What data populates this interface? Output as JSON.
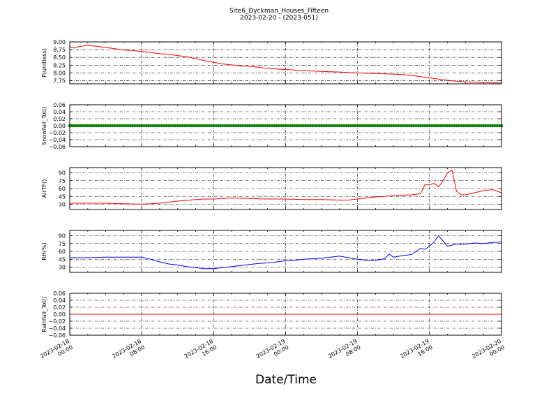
{
  "figure": {
    "title": "Site6_Dyckman_Houses_Fifteen",
    "subtitle": "2023-02-20 - (2023-051)",
    "xlabel": "Date/Time"
  },
  "chart_data": [
    {
      "type": "line",
      "ylabel": "P(unitless)",
      "ylim": [
        7.65,
        9.0
      ],
      "yticks": [
        "7.75",
        "8.00",
        "8.25",
        "8.50",
        "8.75",
        "9.00"
      ],
      "ytick_values": [
        7.75,
        8.0,
        8.25,
        8.5,
        8.75,
        9.0
      ],
      "xlim": [
        "2023-02-18 00:00",
        "2023-02-20 00:00"
      ],
      "grid": true,
      "series": [
        {
          "color": "#ff0000",
          "x_hours": [
            0,
            0.5,
            1,
            2,
            3,
            4,
            5,
            6,
            7,
            8,
            9,
            10,
            11,
            12,
            13,
            14,
            15,
            16,
            17,
            18,
            19,
            20,
            21,
            22,
            23,
            24,
            25,
            26,
            27,
            28,
            29,
            30,
            31,
            32,
            33,
            34,
            35,
            36,
            37,
            38,
            39,
            40,
            41,
            42,
            43,
            44,
            45,
            46,
            47,
            48
          ],
          "values": [
            8.84,
            8.8,
            8.85,
            8.89,
            8.86,
            8.82,
            8.78,
            8.74,
            8.72,
            8.69,
            8.66,
            8.62,
            8.6,
            8.56,
            8.52,
            8.46,
            8.4,
            8.34,
            8.29,
            8.26,
            8.23,
            8.21,
            8.18,
            8.15,
            8.13,
            8.11,
            8.09,
            8.08,
            8.06,
            8.05,
            8.04,
            8.03,
            8.01,
            8.0,
            7.99,
            7.98,
            7.97,
            7.96,
            7.95,
            7.92,
            7.88,
            7.84,
            7.8,
            7.76,
            7.73,
            7.71,
            7.7,
            7.69,
            7.68,
            7.68
          ]
        }
      ]
    },
    {
      "type": "line",
      "ylabel": "Snowfall_Tot()",
      "ylim": [
        -0.06,
        0.06
      ],
      "yticks": [
        "−0.06",
        "−0.04",
        "−0.02",
        "0.00",
        "0.02",
        "0.04",
        "0.06"
      ],
      "ytick_values": [
        -0.06,
        -0.04,
        -0.02,
        0.0,
        0.02,
        0.04,
        0.06
      ],
      "xlim": [
        "2023-02-18 00:00",
        "2023-02-20 00:00"
      ],
      "grid": true,
      "series": [
        {
          "color": "#008000",
          "x_hours": [
            0,
            48
          ],
          "values": [
            0,
            0
          ],
          "markers": true
        }
      ]
    },
    {
      "type": "line",
      "ylabel": "AirTF()",
      "ylim": [
        20,
        100
      ],
      "yticks": [
        "30",
        "45",
        "60",
        "75",
        "90"
      ],
      "ytick_values": [
        30,
        45,
        60,
        75,
        90
      ],
      "xlim": [
        "2023-02-18 00:00",
        "2023-02-20 00:00"
      ],
      "grid": true,
      "series": [
        {
          "color": "#ff0000",
          "x_hours": [
            0,
            2,
            4,
            6,
            8,
            10,
            12,
            14,
            15,
            16,
            18,
            20,
            22,
            24,
            26,
            28,
            30,
            31,
            32,
            34,
            35,
            36,
            38,
            39,
            39.5,
            40,
            40.5,
            41,
            41.5,
            42,
            42.5,
            43,
            43.5,
            44,
            45,
            46,
            47,
            48
          ],
          "values": [
            32,
            32,
            32,
            31,
            30,
            32,
            36,
            39,
            40,
            40,
            42,
            41,
            40,
            40,
            39,
            39,
            38,
            38,
            40,
            44,
            45,
            47,
            48,
            50,
            68,
            67,
            70,
            63,
            75,
            90,
            95,
            55,
            48,
            48,
            52,
            56,
            58,
            52
          ]
        }
      ]
    },
    {
      "type": "line",
      "ylabel": "RH(%)",
      "ylim": [
        20,
        100
      ],
      "yticks": [
        "30",
        "45",
        "60",
        "75",
        "90"
      ],
      "ytick_values": [
        30,
        45,
        60,
        75,
        90
      ],
      "xlim": [
        "2023-02-18 00:00",
        "2023-02-20 00:00"
      ],
      "grid": true,
      "series": [
        {
          "color": "#0000ff",
          "x_hours": [
            0,
            2,
            4,
            6,
            8,
            9,
            10,
            11,
            12,
            13,
            14,
            15,
            16,
            17,
            18,
            19,
            20,
            21,
            22,
            23,
            24,
            25,
            26,
            27,
            28,
            29,
            30,
            31,
            32,
            33,
            34,
            35,
            35.5,
            36,
            37,
            38,
            38.5,
            39,
            39.5,
            40,
            40.5,
            41,
            41.5,
            42,
            42.5,
            43,
            44,
            45,
            46,
            47,
            48
          ],
          "values": [
            48,
            48,
            49,
            49,
            49,
            45,
            40,
            36,
            34,
            31,
            29,
            27,
            27,
            29,
            31,
            33,
            35,
            37,
            38,
            40,
            42,
            43,
            45,
            46,
            47,
            49,
            51,
            48,
            45,
            43,
            43,
            46,
            55,
            49,
            52,
            54,
            60,
            66,
            64,
            70,
            78,
            90,
            80,
            70,
            72,
            74,
            74,
            76,
            75,
            77,
            78
          ]
        }
      ]
    },
    {
      "type": "line",
      "ylabel": "Rainfall_Tot()",
      "ylim": [
        -0.06,
        0.06
      ],
      "yticks": [
        "−0.06",
        "−0.04",
        "−0.02",
        "0.00",
        "0.02",
        "0.04",
        "0.06"
      ],
      "ytick_values": [
        -0.06,
        -0.04,
        -0.02,
        0.0,
        0.02,
        0.04,
        0.06
      ],
      "xlim": [
        "2023-02-18 00:00",
        "2023-02-20 00:00"
      ],
      "grid": true,
      "series": [
        {
          "color": "#ff0000",
          "x_hours": [
            0,
            48
          ],
          "values": [
            0,
            0
          ]
        }
      ]
    }
  ],
  "xticks": [
    {
      "hour": 0,
      "line1": "2023-02-18",
      "line2": "00:00"
    },
    {
      "hour": 8,
      "line1": "2023-02-18",
      "line2": "08:00"
    },
    {
      "hour": 16,
      "line1": "2023-02-18",
      "line2": "16:00"
    },
    {
      "hour": 24,
      "line1": "2023-02-19",
      "line2": "00:00"
    },
    {
      "hour": 32,
      "line1": "2023-02-19",
      "line2": "08:00"
    },
    {
      "hour": 40,
      "line1": "2023-02-19",
      "line2": "16:00"
    },
    {
      "hour": 48,
      "line1": "2023-02-20",
      "line2": "00:00"
    }
  ]
}
